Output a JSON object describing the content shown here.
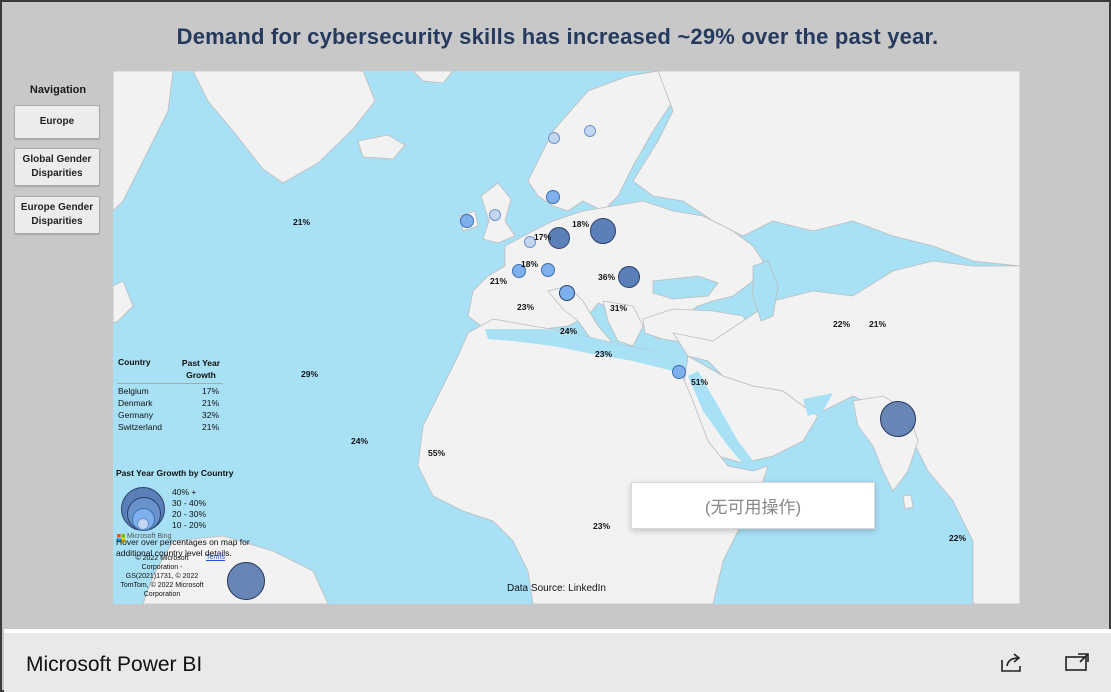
{
  "header": {
    "title": "Demand for cybersecurity skills has increased ~29% over the past year."
  },
  "navigation": {
    "label": "Navigation",
    "buttons": [
      {
        "label": "Europe"
      },
      {
        "label": "Global Gender Disparities"
      },
      {
        "label": "Europe Gender Disparities"
      }
    ]
  },
  "map": {
    "percent_labels": [
      "21%",
      "18%",
      "17%",
      "18%",
      "21%",
      "36%",
      "23%",
      "31%",
      "24%",
      "23%",
      "22%",
      "21%",
      "29%",
      "51%",
      "24%",
      "55%",
      "23%",
      "22%"
    ],
    "table": {
      "headers": {
        "country": "Country",
        "growth": "Past Year Growth"
      },
      "rows": [
        {
          "country": "Belgium",
          "growth": "17%"
        },
        {
          "country": "Denmark",
          "growth": "21%"
        },
        {
          "country": "Germany",
          "growth": "32%"
        },
        {
          "country": "Switzerland",
          "growth": "21%"
        }
      ]
    },
    "legend": {
      "title": "Past Year Growth by Country",
      "items": [
        "40% +",
        "30 - 40%",
        "20 - 30%",
        "10 - 20%"
      ]
    },
    "hover_note": "Hover over percentages on map for additional country level details.",
    "attribution": {
      "bing": "Microsoft Bing",
      "text": "© 2022 Microsoft Corporation - GS(2021)1731, © 2022 TomTom, © 2022 Microsoft Corporation",
      "link": "Terms"
    },
    "data_source": "Data Source: LinkedIn",
    "toast": "(无可用操作)"
  },
  "footer": {
    "brand": "Microsoft Power BI",
    "icons": [
      "share-icon",
      "open-in-new-window-icon"
    ]
  },
  "colors": {
    "title": "#253a5e",
    "water": "#a8e0f5",
    "land": "#f2f2f2",
    "bubble_dark": "#5878a8",
    "bubble_mid": "#4a8fe0",
    "bubble_light": "#a8c8f0"
  }
}
